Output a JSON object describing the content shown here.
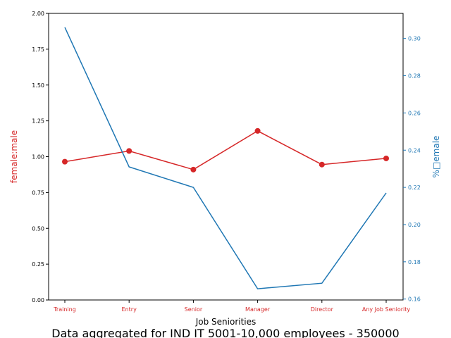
{
  "chart_data": {
    "type": "line",
    "categories": [
      "Training",
      "Entry",
      "Senior",
      "Manager",
      "Director",
      "Any Job Seniority"
    ],
    "xlabel": "Job Seniorities",
    "caption": "Data aggregated for IND IT 5001-10,000 employees - 350000",
    "left_axis": {
      "label": "female:male",
      "ylim": [
        0,
        2.0
      ],
      "ticks": [
        0.0,
        0.25,
        0.5,
        0.75,
        1.0,
        1.25,
        1.5,
        1.75,
        2.0
      ],
      "tick_labels": [
        "0.00",
        "0.25",
        "0.50",
        "0.75",
        "1.00",
        "1.25",
        "1.50",
        "1.75",
        "2.00"
      ],
      "color": "#d62728"
    },
    "right_axis": {
      "label": "%\u0000female",
      "label_display": "%□emale",
      "ylim": [
        0.1595,
        0.3135
      ],
      "ticks": [
        0.16,
        0.18,
        0.2,
        0.22,
        0.24,
        0.26,
        0.28,
        0.3
      ],
      "tick_labels": [
        "0.16",
        "0.18",
        "0.20",
        "0.22",
        "0.24",
        "0.26",
        "0.28",
        "0.30"
      ],
      "color": "#1f77b4"
    },
    "series": [
      {
        "axis": "left",
        "color": "#d62728",
        "markers": true,
        "values": [
          0.965,
          1.04,
          0.91,
          1.18,
          0.945,
          0.988
        ]
      },
      {
        "axis": "right",
        "color": "#1f77b4",
        "markers": false,
        "values": [
          0.306,
          0.231,
          0.22,
          0.1655,
          0.1685,
          0.217
        ]
      }
    ],
    "grid": false,
    "legend": "none"
  }
}
